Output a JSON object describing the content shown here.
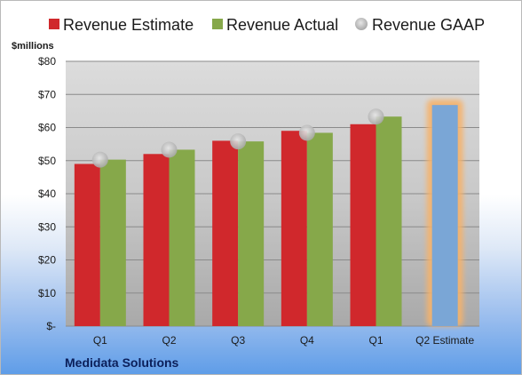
{
  "chart_data": {
    "type": "bar",
    "company": "Medidata Solutions",
    "ylabel": "$millions",
    "ylim": [
      0,
      80
    ],
    "yticks": [
      "$-",
      "$10",
      "$20",
      "$30",
      "$40",
      "$50",
      "$60",
      "$70",
      "$80"
    ],
    "categories": [
      "Q1",
      "Q2",
      "Q3",
      "Q4",
      "Q1",
      "Q2 Estimate"
    ],
    "series": [
      {
        "name": "Revenue Estimate",
        "kind": "bar",
        "color": "#d0282c",
        "values": [
          49,
          52,
          56,
          59,
          61,
          null
        ]
      },
      {
        "name": "Revenue Actual",
        "kind": "bar",
        "color": "#86a84a",
        "values": [
          50.3,
          53.3,
          55.8,
          58.4,
          63.3,
          66.8
        ]
      },
      {
        "name": "Revenue GAAP",
        "kind": "marker",
        "color": "#bfbfbf",
        "values": [
          50.3,
          53.3,
          55.8,
          58.4,
          63.3,
          null
        ]
      }
    ],
    "highlight": {
      "category_index": 5,
      "color": "#7aa6d6",
      "glow": "#f6b26b"
    },
    "grid": true,
    "legend": "top"
  }
}
